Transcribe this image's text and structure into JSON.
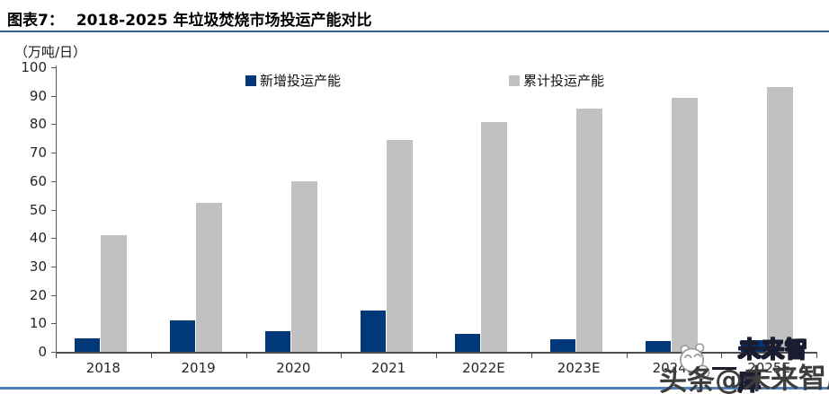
{
  "header": {
    "figure_label": "图表7：",
    "title": "2018-2025 年垃圾焚烧市场投运产能对比"
  },
  "chart": {
    "unit_label": "（万吨/日）"
  },
  "chart_data": {
    "type": "bar",
    "title": "2018-2025 年垃圾焚烧市场投运产能对比",
    "ylabel": "（万吨/日）",
    "categories": [
      "2018",
      "2019",
      "2020",
      "2021",
      "2022E",
      "2023E",
      "2024E",
      "2025E"
    ],
    "series": [
      {
        "name": "新增投运产能",
        "color": "#00387a",
        "values": [
          4.7,
          11.0,
          7.3,
          14.5,
          6.2,
          4.5,
          3.8,
          4.0
        ]
      },
      {
        "name": "累计投运产能",
        "color": "#c1c1c1",
        "values": [
          41.0,
          52.3,
          60.0,
          74.5,
          80.7,
          85.5,
          89.3,
          93.0
        ]
      }
    ],
    "ylim": [
      0,
      100
    ],
    "yticks": [
      0,
      10,
      20,
      30,
      40,
      50,
      60,
      70,
      80,
      90,
      100
    ],
    "grid": false,
    "legend_position": "top"
  },
  "watermark": {
    "logo": "panda-face-logo",
    "dash": "—",
    "small_text": "未来智库",
    "big_text": "头条@未来智库"
  },
  "colors": {
    "accent_blue": "#00387a",
    "bar_gray": "#c1c1c1",
    "title_rule_blue": "#376092",
    "bottom_rule_blue": "#4f81bd",
    "axis_gray": "#595959"
  }
}
